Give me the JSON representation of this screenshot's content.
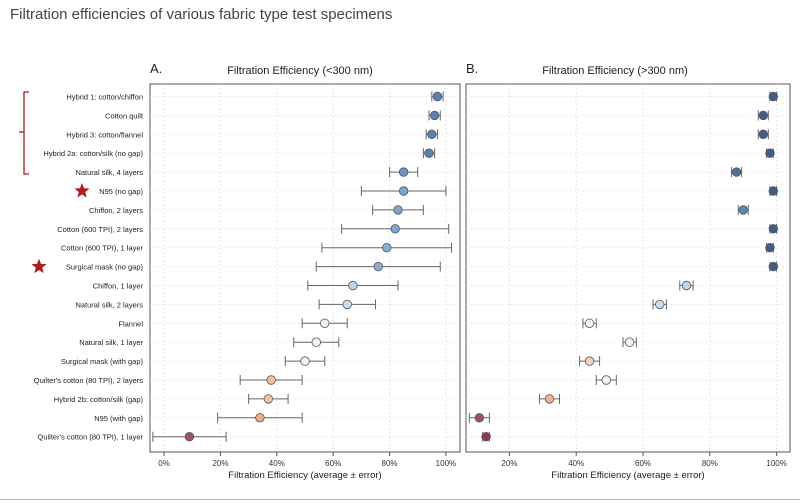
{
  "page_title": "Filtration efficiencies of various fabric type test specimens",
  "chart_data": [
    {
      "type": "scatter",
      "panel_label": "A.",
      "title": "Filtration Efficiency (<300 nm)",
      "xlabel": "Filtration Efficiency (average ± error)",
      "xlim": [
        -5,
        105
      ],
      "xticks": [
        0,
        20,
        40,
        60,
        80,
        100
      ],
      "xtick_labels": [
        "0%",
        "20%",
        "40%",
        "60%",
        "80%",
        "100%"
      ],
      "grid": true,
      "categories": [
        "Hybrid 1: cotton/chiffon",
        "Cotton quilt",
        "Hybrid 3: cotton/flannel",
        "Hybrid 2a: cotton/silk (no gap)",
        "Natural silk, 4 layers",
        "N95 (no gap)",
        "Chiffon, 2 layers",
        "Cotton (600 TPI), 2 layers",
        "Cotton (600 TPI), 1 layer",
        "Surgical mask (no gap)",
        "Chiffon, 1 layer",
        "Natural silk, 2 layers",
        "Flannel",
        "Natural silk, 1 layer",
        "Surgical mask (with gap)",
        "Quilter's cotton (80 TPI), 2 layers",
        "Hybrid 2b: cotton/silk (gap)",
        "N95 (with gap)",
        "Quilter's cotton (80 TPI), 1 layer"
      ],
      "values": [
        97,
        96,
        95,
        94,
        85,
        85,
        83,
        82,
        79,
        76,
        67,
        65,
        57,
        54,
        50,
        38,
        37,
        34,
        9
      ],
      "errors": [
        2,
        2,
        2,
        2,
        5,
        15,
        9,
        19,
        23,
        22,
        16,
        10,
        8,
        8,
        7,
        11,
        7,
        15,
        13
      ],
      "point_colors": [
        "#5a7fb5",
        "#5a7fb5",
        "#5a7fb5",
        "#5a7fb5",
        "#6a93c6",
        "#7aa5d2",
        "#7aa5d2",
        "#7aa5d2",
        "#86aed6",
        "#86aed6",
        "#bcd5ea",
        "#c7dcee",
        "#eef2f6",
        "#eef2f6",
        "#f7f3ef",
        "#f2c0a4",
        "#f2c0a4",
        "#eea98a",
        "#a25063"
      ]
    },
    {
      "type": "scatter",
      "panel_label": "B.",
      "title": "Filtration Efficiency (>300 nm)",
      "xlabel": "Filtration Efficiency (average ± error)",
      "xlim": [
        7,
        104
      ],
      "xticks": [
        20,
        40,
        60,
        80,
        100
      ],
      "xtick_labels": [
        "20%",
        "40%",
        "60%",
        "80%",
        "100%"
      ],
      "grid": true,
      "values": [
        99,
        96,
        96,
        98,
        88,
        99,
        90,
        99,
        98,
        99,
        73,
        65,
        44,
        56,
        44,
        49,
        32,
        11,
        13
      ],
      "errors": [
        1,
        1.5,
        1.5,
        1,
        1.5,
        1,
        1.5,
        1,
        1,
        1,
        2,
        2,
        2,
        2,
        3,
        3,
        3,
        3,
        1
      ],
      "point_colors": [
        "#3e5f8a",
        "#3e5f8a",
        "#3e5f8a",
        "#3e5f8a",
        "#4d6f9c",
        "#3e5f8a",
        "#5b84b8",
        "#3e5f8a",
        "#3e5f8a",
        "#3e5f8a",
        "#bcd5ea",
        "#c7dcee",
        "#f7f3ef",
        "#eef2f6",
        "#f4d0bc",
        "#f7f3ef",
        "#f2b394",
        "#a25063",
        "#8a3a52"
      ]
    }
  ],
  "annotations": {
    "starred_rows": [
      "N95 (no gap)",
      "Surgical mask (no gap)"
    ],
    "star_color": "#b01c1c",
    "bracket_color": "#b01c1c",
    "bracket_rows": [
      "Hybrid 1: cotton/chiffon",
      "Cotton quilt",
      "Hybrid 3: cotton/flannel",
      "Hybrid 2a: cotton/silk (no gap)",
      "Natural silk, 4 layers"
    ]
  }
}
